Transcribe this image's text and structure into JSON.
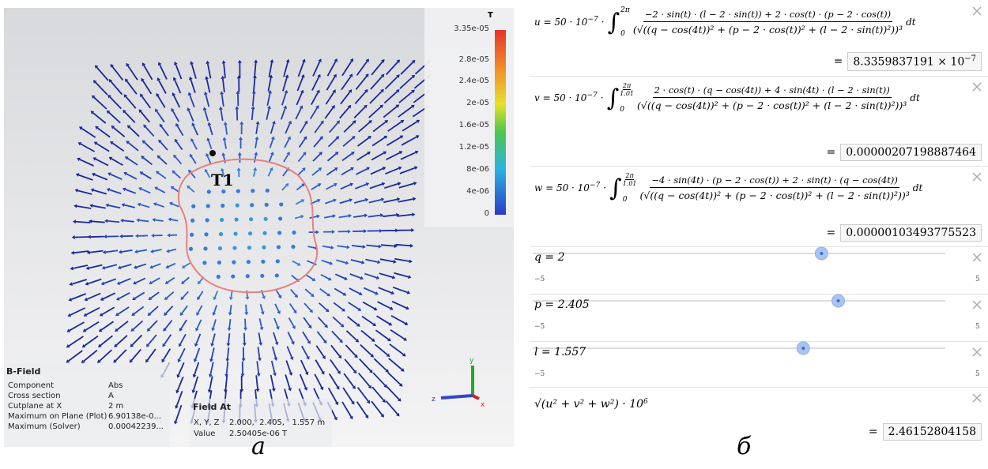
{
  "left_panel": {
    "legend_title": "T",
    "colorbar_labels": [
      "3.35e-05",
      "2.8e-05",
      "2.4e-05",
      "2e-05",
      "1.6e-05",
      "1.2e-05",
      "8e-06",
      "4e-06",
      "0"
    ],
    "point_label": "T1",
    "info": {
      "title": "B-Field",
      "rows": [
        [
          "Component",
          "Abs"
        ],
        [
          "Cross section",
          "A"
        ],
        [
          "Cutplane at X",
          "2 m"
        ],
        [
          "Maximum on Plane (Plot)",
          "6.90138e-0..."
        ],
        [
          "Maximum (Solver)",
          "0.00042239..."
        ]
      ]
    },
    "field_at": {
      "title": "Field At",
      "rows": [
        [
          "X, Y, Z",
          "2.000,  2.405,   1.557 m"
        ],
        [
          "Value",
          "2.50405e-06 T"
        ]
      ]
    },
    "axes": [
      "y",
      "z",
      "x"
    ],
    "caption": "a"
  },
  "right_panel": {
    "integral_sign": "∫",
    "equals_sign": "=",
    "expressions": [
      {
        "lhs": "u = 50 · 10",
        "lhs_exp": "−7",
        "lower": "0",
        "upper": "2π",
        "numerator": "−2 · sin(t) · (l − 2 · sin(t)) + 2 · cos(t) · (p − 2 · cos(t))",
        "denominator": "(√((q − cos(4t))² + (p − 2 · cos(t))² + (l − 2 · sin(t))²))³",
        "dt": "dt",
        "result": "8.3359837191 × 10",
        "result_exp": "−7"
      },
      {
        "lhs": "v = 50 · 10",
        "lhs_exp": "−7",
        "lower": "0",
        "upper": "2π",
        "upper_den": "1.01",
        "numerator": "2 · cos(t) · (q − cos(4t)) + 4 · sin(4t) · (l − 2 · sin(t))",
        "denominator": "(√((q − cos(4t))² + (p − 2 · cos(t))² + (l − 2 · sin(t))²))³",
        "dt": "dt",
        "result": "0.00000207198887464"
      },
      {
        "lhs": "w = 50 · 10",
        "lhs_exp": "−7",
        "lower": "0",
        "upper": "2π",
        "upper_den": "1.01",
        "numerator": "−4 · sin(4t) · (p − 2 · cos(t)) + 2 · sin(t) · (q − cos(4t))",
        "denominator": "(√((q − cos(4t))² + (p − 2 · cos(t))² + (l − 2 · sin(t))²))³",
        "dt": "dt",
        "result": "0.00000103493775523"
      }
    ],
    "sliders": [
      {
        "label": "q = 2",
        "value": 2,
        "min": {
          "value": -5,
          "label": "−5"
        },
        "max": 5
      },
      {
        "label": "p = 2.405",
        "value": 2.405,
        "min": {
          "value": -5,
          "label": "−5"
        },
        "max": 5
      },
      {
        "label": "l = 1.557",
        "value": 1.557,
        "min": {
          "value": -5,
          "label": "−5"
        },
        "max": 5
      }
    ],
    "magnitude": {
      "expr": "√(u² + v² + w²) · 10",
      "expr_exp": "6",
      "result": "2.46152804158"
    },
    "caption": "б"
  }
}
